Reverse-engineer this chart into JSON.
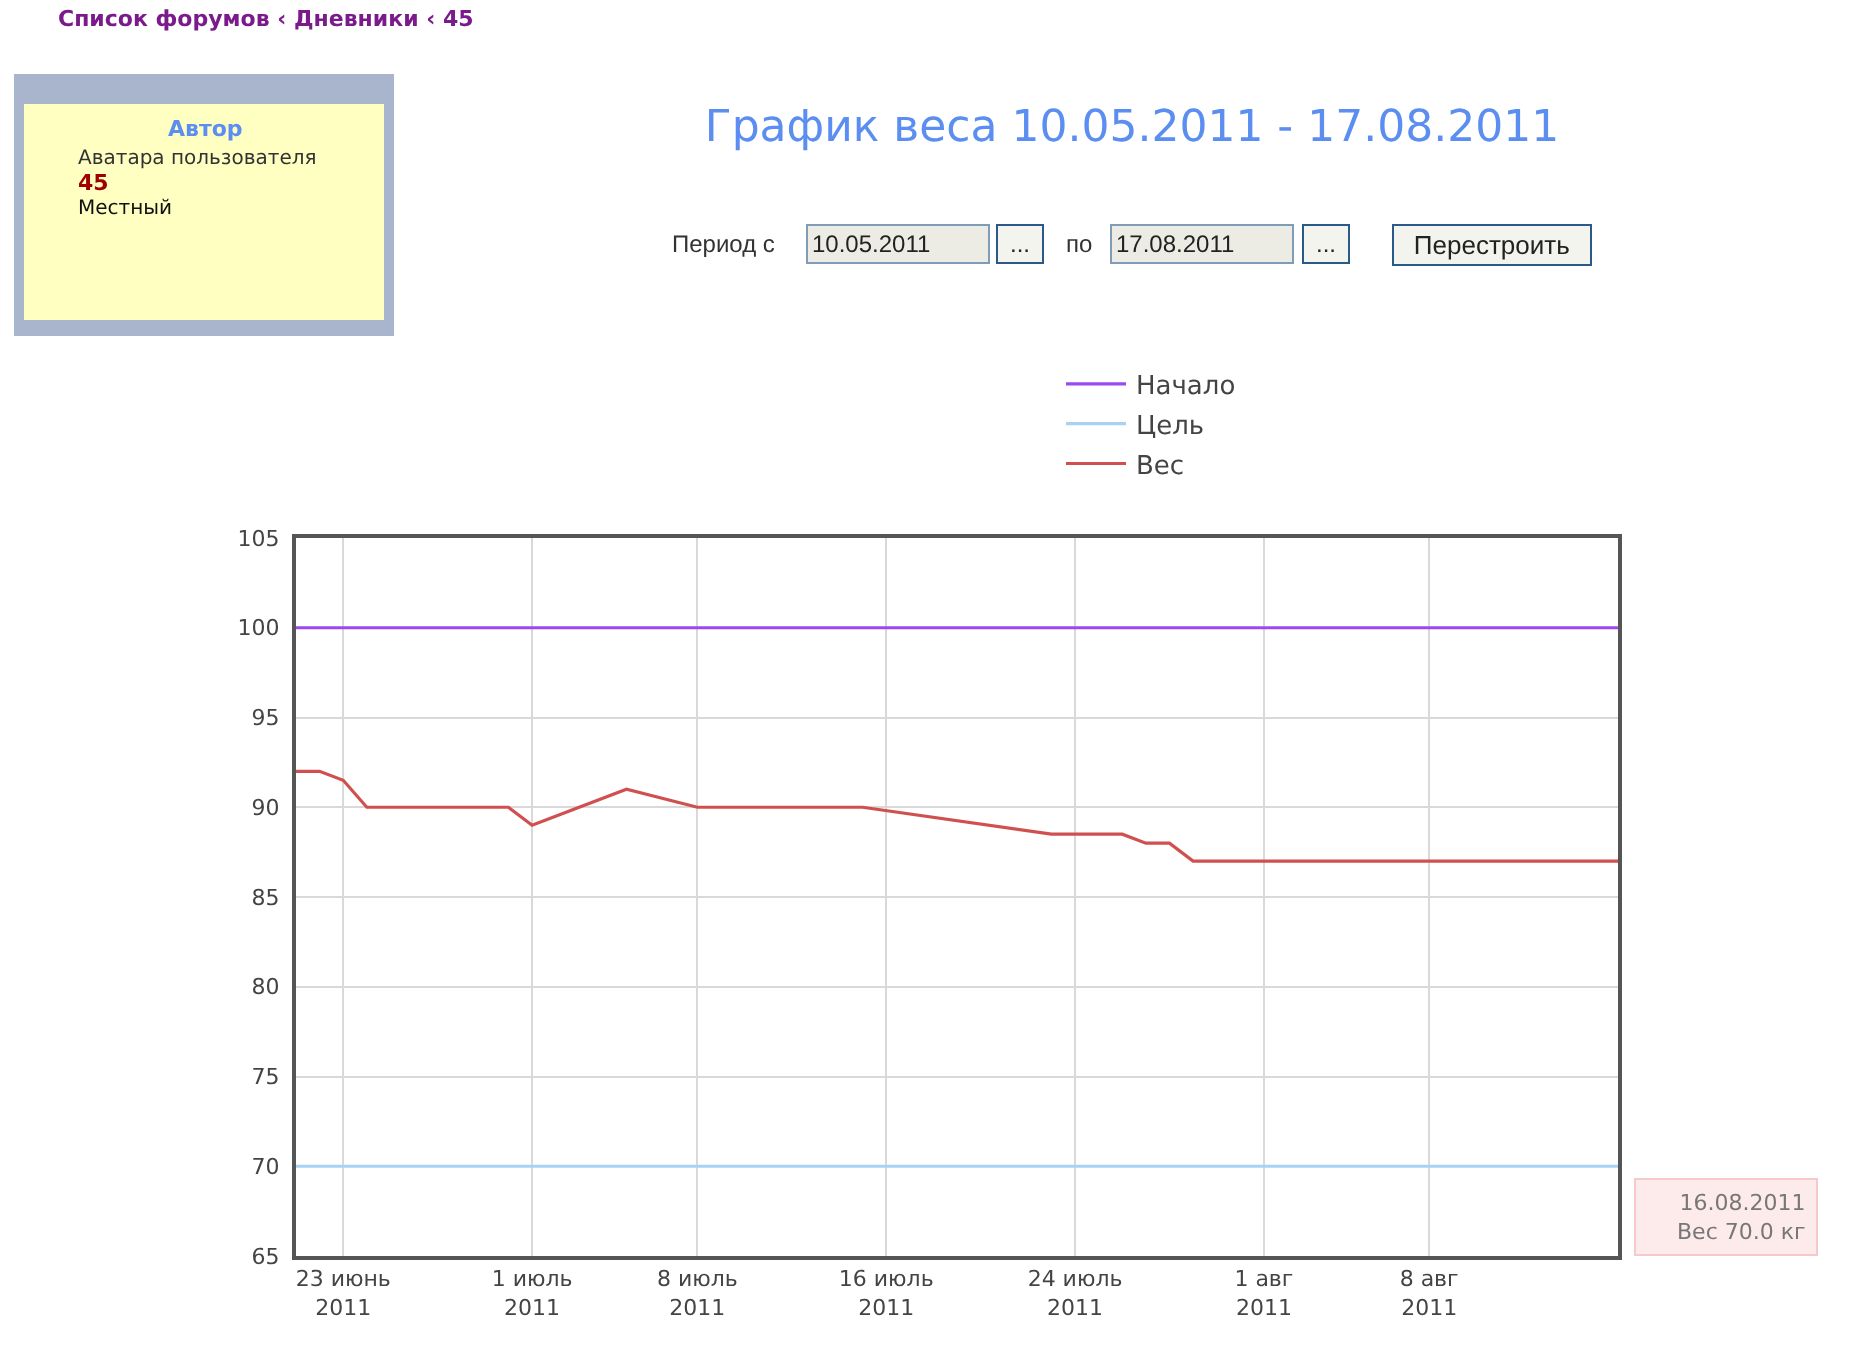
{
  "chart_data": {
    "type": "line",
    "title": "График веса 10.05.2011 - 17.08.2011",
    "series": [
      {
        "name": "Начало",
        "color": "#9b4af2",
        "x": [
          "2011-06-21",
          "2011-08-16"
        ],
        "values": [
          100,
          100
        ]
      },
      {
        "name": "Цель",
        "color": "#a8d2f4",
        "x": [
          "2011-06-21",
          "2011-08-16"
        ],
        "values": [
          70,
          70
        ]
      },
      {
        "name": "Вес",
        "color": "#d05050",
        "x": [
          "2011-06-21",
          "2011-06-22",
          "2011-06-23",
          "2011-06-24",
          "2011-06-30",
          "2011-07-01",
          "2011-07-05",
          "2011-07-08",
          "2011-07-15",
          "2011-07-23",
          "2011-07-26",
          "2011-07-27",
          "2011-07-28",
          "2011-07-29",
          "2011-08-16"
        ],
        "values": [
          92,
          92,
          91.5,
          90,
          90,
          89,
          91,
          90,
          90,
          88.5,
          88.5,
          88,
          88,
          87,
          87
        ]
      }
    ],
    "xlim": [
      "2011-06-21",
      "2011-08-16"
    ],
    "xticks": [
      {
        "value": "2011-06-23",
        "label": "23 июнь\n2011"
      },
      {
        "value": "2011-07-01",
        "label": "1 июль\n2011"
      },
      {
        "value": "2011-07-08",
        "label": "8 июль\n2011"
      },
      {
        "value": "2011-07-16",
        "label": "16 июль\n2011"
      },
      {
        "value": "2011-07-24",
        "label": "24 июль\n2011"
      },
      {
        "value": "2011-08-01",
        "label": "1 авг\n2011"
      },
      {
        "value": "2011-08-08",
        "label": "8 авг\n2011"
      }
    ],
    "ylim": [
      65,
      105
    ],
    "yticks": [
      65,
      70,
      75,
      80,
      85,
      90,
      95,
      100,
      105
    ],
    "grid": true,
    "legend": "top",
    "line_style": "solid",
    "annotations": [
      "Список форумов ‹ Дневники ‹ 45",
      "Автор",
      "Аватара пользователя",
      "45",
      "Местный",
      "Период с",
      "10.05.2011",
      "...",
      "по",
      "17.08.2011",
      "...",
      "Перестроить",
      {
        "text": "16.08.2011\nВес 70.0 кг",
        "x": "2011-08-16",
        "y": 70
      }
    ]
  }
}
